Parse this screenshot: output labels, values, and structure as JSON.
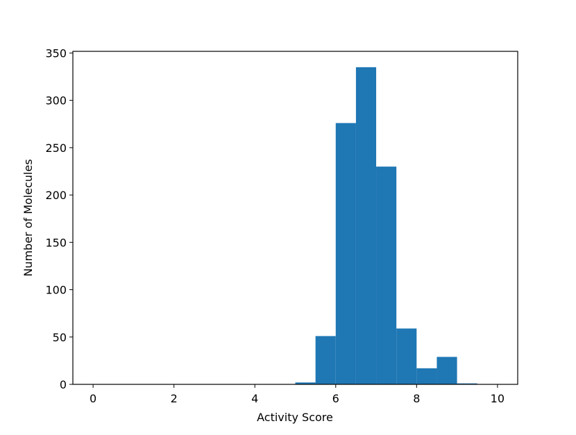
{
  "chart_data": {
    "type": "histogram",
    "x_label": "Activity Score",
    "y_label": "Number of Molecules",
    "bins": [
      0,
      0.5,
      1,
      1.5,
      2,
      2.5,
      3,
      3.5,
      4,
      4.5,
      5,
      5.5,
      6,
      6.5,
      7,
      7.5,
      8,
      8.5,
      9,
      9.5,
      10
    ],
    "values": [
      0,
      0,
      0,
      0,
      0,
      0,
      0,
      0,
      0,
      0,
      2,
      51,
      276,
      335,
      230,
      59,
      17,
      29,
      1,
      0
    ],
    "color": "#1f77b4",
    "xlim": [
      -0.5,
      10.5
    ],
    "xticks": [
      0,
      2,
      4,
      6,
      8,
      10
    ],
    "ylim": [
      0,
      351.75
    ],
    "yticks": [
      0,
      50,
      100,
      150,
      200,
      250,
      300,
      350
    ],
    "grid": false
  }
}
